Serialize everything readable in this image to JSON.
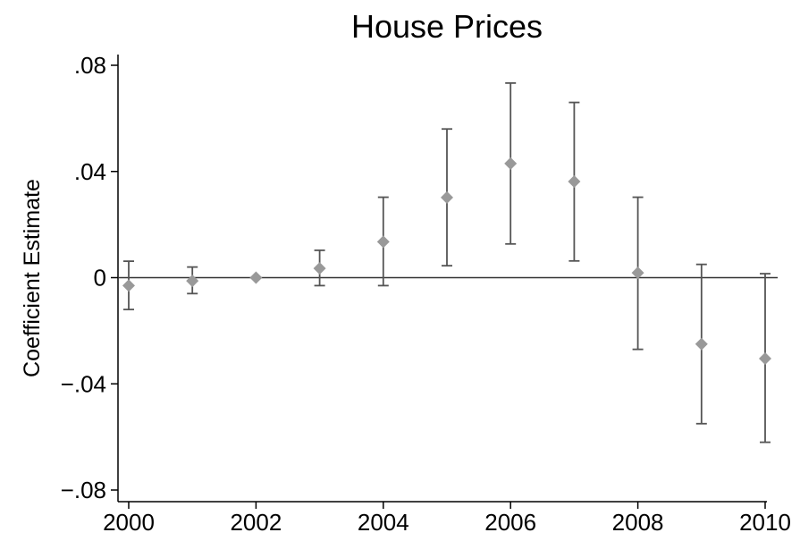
{
  "chart_data": {
    "type": "scatter",
    "title": "House Prices",
    "xlabel": "",
    "ylabel": "Coefficient Estimate",
    "xlim": [
      2000,
      2010
    ],
    "ylim": [
      -0.08,
      0.08
    ],
    "x_ticks": [
      2000,
      2002,
      2004,
      2006,
      2008,
      2010
    ],
    "x_tick_labels": [
      "2000",
      "2002",
      "2004",
      "2006",
      "2008",
      "2010"
    ],
    "y_ticks": [
      0.08,
      0.04,
      0,
      -0.04,
      -0.08
    ],
    "y_tick_labels": [
      ".08",
      ".04",
      "0",
      "−.04",
      "−.08"
    ],
    "reference_line_y": 0,
    "grid": false,
    "legend": "none",
    "marker": "diamond",
    "marker_color": "#999999",
    "errorbar_color": "#555555",
    "series": [
      {
        "x": [
          2000,
          2001,
          2002,
          2003,
          2004,
          2005,
          2006,
          2007,
          2008,
          2009,
          2010
        ],
        "y": [
          -0.003,
          -0.0012,
          0.0,
          0.0035,
          0.0135,
          0.0302,
          0.043,
          0.0362,
          0.0018,
          -0.025,
          -0.0305
        ],
        "ci_low": [
          -0.012,
          -0.006,
          0.0,
          -0.003,
          -0.003,
          0.0045,
          0.0127,
          0.0063,
          -0.027,
          -0.055,
          -0.062
        ],
        "ci_high": [
          0.0062,
          0.004,
          0.0,
          0.0103,
          0.0303,
          0.056,
          0.0733,
          0.066,
          0.0303,
          0.005,
          0.0015
        ]
      }
    ]
  }
}
